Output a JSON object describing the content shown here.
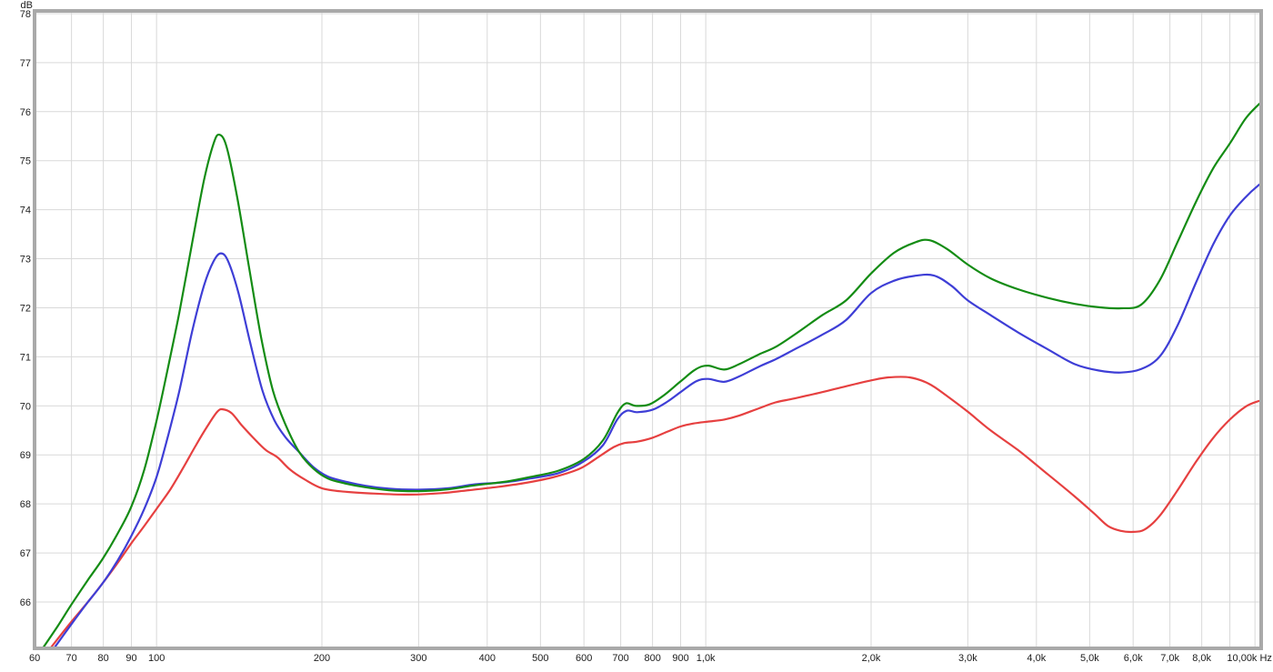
{
  "chart_data": {
    "type": "line",
    "title": "",
    "ylabel": "dB",
    "x_unit": "Hz",
    "x_scale": "log",
    "xlim": [
      60,
      10500
    ],
    "ylim": [
      65.05,
      78
    ],
    "grid": true,
    "legend": "none",
    "style": {
      "background": "#ffffff",
      "grid_color": "#d9d9d9",
      "border_color": "#a9a9a9",
      "label_color": "#1c1c1c"
    },
    "yticks": [
      66,
      67,
      68,
      69,
      70,
      71,
      72,
      73,
      74,
      75,
      76,
      77,
      78
    ],
    "xgrid": [
      70,
      80,
      90,
      100,
      200,
      300,
      400,
      500,
      600,
      700,
      800,
      900,
      1000,
      2000,
      3000,
      4000,
      5000,
      6000,
      7000,
      8000,
      9000,
      10000
    ],
    "xticks": [
      {
        "f": 60,
        "label": "60"
      },
      {
        "f": 70,
        "label": "70"
      },
      {
        "f": 80,
        "label": "80"
      },
      {
        "f": 90,
        "label": "90"
      },
      {
        "f": 100,
        "label": "100"
      },
      {
        "f": 200,
        "label": "200"
      },
      {
        "f": 300,
        "label": "300"
      },
      {
        "f": 400,
        "label": "400"
      },
      {
        "f": 500,
        "label": "500"
      },
      {
        "f": 600,
        "label": "600"
      },
      {
        "f": 700,
        "label": "700"
      },
      {
        "f": 800,
        "label": "800"
      },
      {
        "f": 900,
        "label": "900"
      },
      {
        "f": 1000,
        "label": "1,0k"
      },
      {
        "f": 2000,
        "label": "2,0k"
      },
      {
        "f": 3000,
        "label": "3,0k"
      },
      {
        "f": 4000,
        "label": "4,0k"
      },
      {
        "f": 5000,
        "label": "5,0k"
      },
      {
        "f": 6000,
        "label": "6,0k"
      },
      {
        "f": 7000,
        "label": "7,0k"
      },
      {
        "f": 8000,
        "label": "8,0k"
      },
      {
        "f": 10000,
        "label": "10,00k Hz",
        "dx": -6
      }
    ],
    "series": [
      {
        "name": "red-curve",
        "color": "#E64040",
        "points": [
          [
            64,
            65.05
          ],
          [
            70,
            65.6
          ],
          [
            75,
            66.0
          ],
          [
            80,
            66.4
          ],
          [
            85,
            66.8
          ],
          [
            90,
            67.2
          ],
          [
            95,
            67.55
          ],
          [
            100,
            67.9
          ],
          [
            106,
            68.3
          ],
          [
            112,
            68.75
          ],
          [
            118,
            69.2
          ],
          [
            124,
            69.6
          ],
          [
            129,
            69.88
          ],
          [
            132,
            69.93
          ],
          [
            137,
            69.85
          ],
          [
            143,
            69.6
          ],
          [
            150,
            69.35
          ],
          [
            158,
            69.1
          ],
          [
            166,
            68.95
          ],
          [
            175,
            68.7
          ],
          [
            186,
            68.5
          ],
          [
            200,
            68.32
          ],
          [
            220,
            68.25
          ],
          [
            250,
            68.21
          ],
          [
            290,
            68.19
          ],
          [
            330,
            68.22
          ],
          [
            370,
            68.28
          ],
          [
            420,
            68.35
          ],
          [
            470,
            68.43
          ],
          [
            530,
            68.55
          ],
          [
            590,
            68.72
          ],
          [
            640,
            68.97
          ],
          [
            680,
            69.16
          ],
          [
            710,
            69.24
          ],
          [
            750,
            69.27
          ],
          [
            800,
            69.35
          ],
          [
            850,
            69.47
          ],
          [
            900,
            69.58
          ],
          [
            950,
            69.64
          ],
          [
            1010,
            69.68
          ],
          [
            1080,
            69.72
          ],
          [
            1150,
            69.8
          ],
          [
            1250,
            69.95
          ],
          [
            1340,
            70.07
          ],
          [
            1450,
            70.15
          ],
          [
            1630,
            70.28
          ],
          [
            1800,
            70.4
          ],
          [
            2000,
            70.52
          ],
          [
            2150,
            70.58
          ],
          [
            2350,
            70.58
          ],
          [
            2550,
            70.45
          ],
          [
            2750,
            70.2
          ],
          [
            3000,
            69.88
          ],
          [
            3300,
            69.5
          ],
          [
            3700,
            69.1
          ],
          [
            4200,
            68.6
          ],
          [
            4700,
            68.15
          ],
          [
            5100,
            67.8
          ],
          [
            5400,
            67.55
          ],
          [
            5700,
            67.45
          ],
          [
            6000,
            67.43
          ],
          [
            6300,
            67.48
          ],
          [
            6700,
            67.75
          ],
          [
            7200,
            68.25
          ],
          [
            7800,
            68.85
          ],
          [
            8400,
            69.35
          ],
          [
            9000,
            69.72
          ],
          [
            9600,
            69.98
          ],
          [
            10100,
            70.09
          ],
          [
            10460,
            70.12
          ]
        ]
      },
      {
        "name": "blue-curve",
        "color": "#3E3ED6",
        "points": [
          [
            65,
            65.05
          ],
          [
            70,
            65.55
          ],
          [
            75,
            66.0
          ],
          [
            80,
            66.4
          ],
          [
            85,
            66.85
          ],
          [
            90,
            67.35
          ],
          [
            95,
            67.9
          ],
          [
            100,
            68.55
          ],
          [
            105,
            69.4
          ],
          [
            110,
            70.3
          ],
          [
            116,
            71.5
          ],
          [
            122,
            72.45
          ],
          [
            127,
            72.95
          ],
          [
            131,
            73.11
          ],
          [
            135,
            72.95
          ],
          [
            141,
            72.3
          ],
          [
            148,
            71.3
          ],
          [
            156,
            70.3
          ],
          [
            164,
            69.7
          ],
          [
            172,
            69.35
          ],
          [
            182,
            69.05
          ],
          [
            193,
            68.75
          ],
          [
            205,
            68.56
          ],
          [
            220,
            68.46
          ],
          [
            240,
            68.37
          ],
          [
            265,
            68.31
          ],
          [
            300,
            68.29
          ],
          [
            340,
            68.32
          ],
          [
            380,
            68.4
          ],
          [
            430,
            68.44
          ],
          [
            480,
            68.52
          ],
          [
            540,
            68.63
          ],
          [
            600,
            68.87
          ],
          [
            650,
            69.2
          ],
          [
            690,
            69.72
          ],
          [
            718,
            69.9
          ],
          [
            750,
            69.87
          ],
          [
            800,
            69.92
          ],
          [
            850,
            70.08
          ],
          [
            900,
            70.28
          ],
          [
            960,
            70.5
          ],
          [
            1010,
            70.55
          ],
          [
            1080,
            70.49
          ],
          [
            1150,
            70.6
          ],
          [
            1250,
            70.8
          ],
          [
            1340,
            70.95
          ],
          [
            1450,
            71.15
          ],
          [
            1630,
            71.45
          ],
          [
            1800,
            71.75
          ],
          [
            2000,
            72.3
          ],
          [
            2200,
            72.55
          ],
          [
            2400,
            72.65
          ],
          [
            2600,
            72.66
          ],
          [
            2800,
            72.45
          ],
          [
            3000,
            72.15
          ],
          [
            3300,
            71.85
          ],
          [
            3700,
            71.5
          ],
          [
            4200,
            71.15
          ],
          [
            4700,
            70.85
          ],
          [
            5200,
            70.72
          ],
          [
            5700,
            70.68
          ],
          [
            6200,
            70.75
          ],
          [
            6700,
            71.0
          ],
          [
            7200,
            71.6
          ],
          [
            7800,
            72.5
          ],
          [
            8400,
            73.3
          ],
          [
            9000,
            73.88
          ],
          [
            9600,
            74.25
          ],
          [
            10100,
            74.48
          ],
          [
            10460,
            74.6
          ]
        ]
      },
      {
        "name": "green-curve",
        "color": "#148C14",
        "points": [
          [
            62,
            65.05
          ],
          [
            66,
            65.5
          ],
          [
            70,
            65.95
          ],
          [
            75,
            66.45
          ],
          [
            80,
            66.9
          ],
          [
            85,
            67.4
          ],
          [
            90,
            67.95
          ],
          [
            95,
            68.7
          ],
          [
            100,
            69.7
          ],
          [
            105,
            70.8
          ],
          [
            110,
            71.9
          ],
          [
            116,
            73.3
          ],
          [
            122,
            74.6
          ],
          [
            127,
            75.35
          ],
          [
            130,
            75.53
          ],
          [
            134,
            75.3
          ],
          [
            140,
            74.3
          ],
          [
            147,
            72.9
          ],
          [
            155,
            71.4
          ],
          [
            163,
            70.3
          ],
          [
            172,
            69.6
          ],
          [
            182,
            69.05
          ],
          [
            193,
            68.72
          ],
          [
            205,
            68.52
          ],
          [
            220,
            68.42
          ],
          [
            240,
            68.34
          ],
          [
            265,
            68.28
          ],
          [
            300,
            68.26
          ],
          [
            340,
            68.3
          ],
          [
            380,
            68.38
          ],
          [
            430,
            68.45
          ],
          [
            480,
            68.55
          ],
          [
            540,
            68.68
          ],
          [
            600,
            68.92
          ],
          [
            650,
            69.3
          ],
          [
            690,
            69.85
          ],
          [
            715,
            70.05
          ],
          [
            745,
            70.0
          ],
          [
            790,
            70.03
          ],
          [
            840,
            70.22
          ],
          [
            900,
            70.5
          ],
          [
            960,
            70.75
          ],
          [
            1010,
            70.82
          ],
          [
            1080,
            70.74
          ],
          [
            1150,
            70.85
          ],
          [
            1250,
            71.05
          ],
          [
            1340,
            71.2
          ],
          [
            1450,
            71.45
          ],
          [
            1630,
            71.85
          ],
          [
            1800,
            72.15
          ],
          [
            2000,
            72.7
          ],
          [
            2200,
            73.12
          ],
          [
            2400,
            73.33
          ],
          [
            2550,
            73.38
          ],
          [
            2750,
            73.2
          ],
          [
            3000,
            72.88
          ],
          [
            3300,
            72.6
          ],
          [
            3700,
            72.38
          ],
          [
            4200,
            72.2
          ],
          [
            4700,
            72.08
          ],
          [
            5200,
            72.01
          ],
          [
            5700,
            71.99
          ],
          [
            6200,
            72.06
          ],
          [
            6700,
            72.55
          ],
          [
            7200,
            73.3
          ],
          [
            7800,
            74.15
          ],
          [
            8400,
            74.85
          ],
          [
            9000,
            75.35
          ],
          [
            9600,
            75.85
          ],
          [
            10100,
            76.12
          ],
          [
            10460,
            76.26
          ]
        ]
      }
    ]
  }
}
